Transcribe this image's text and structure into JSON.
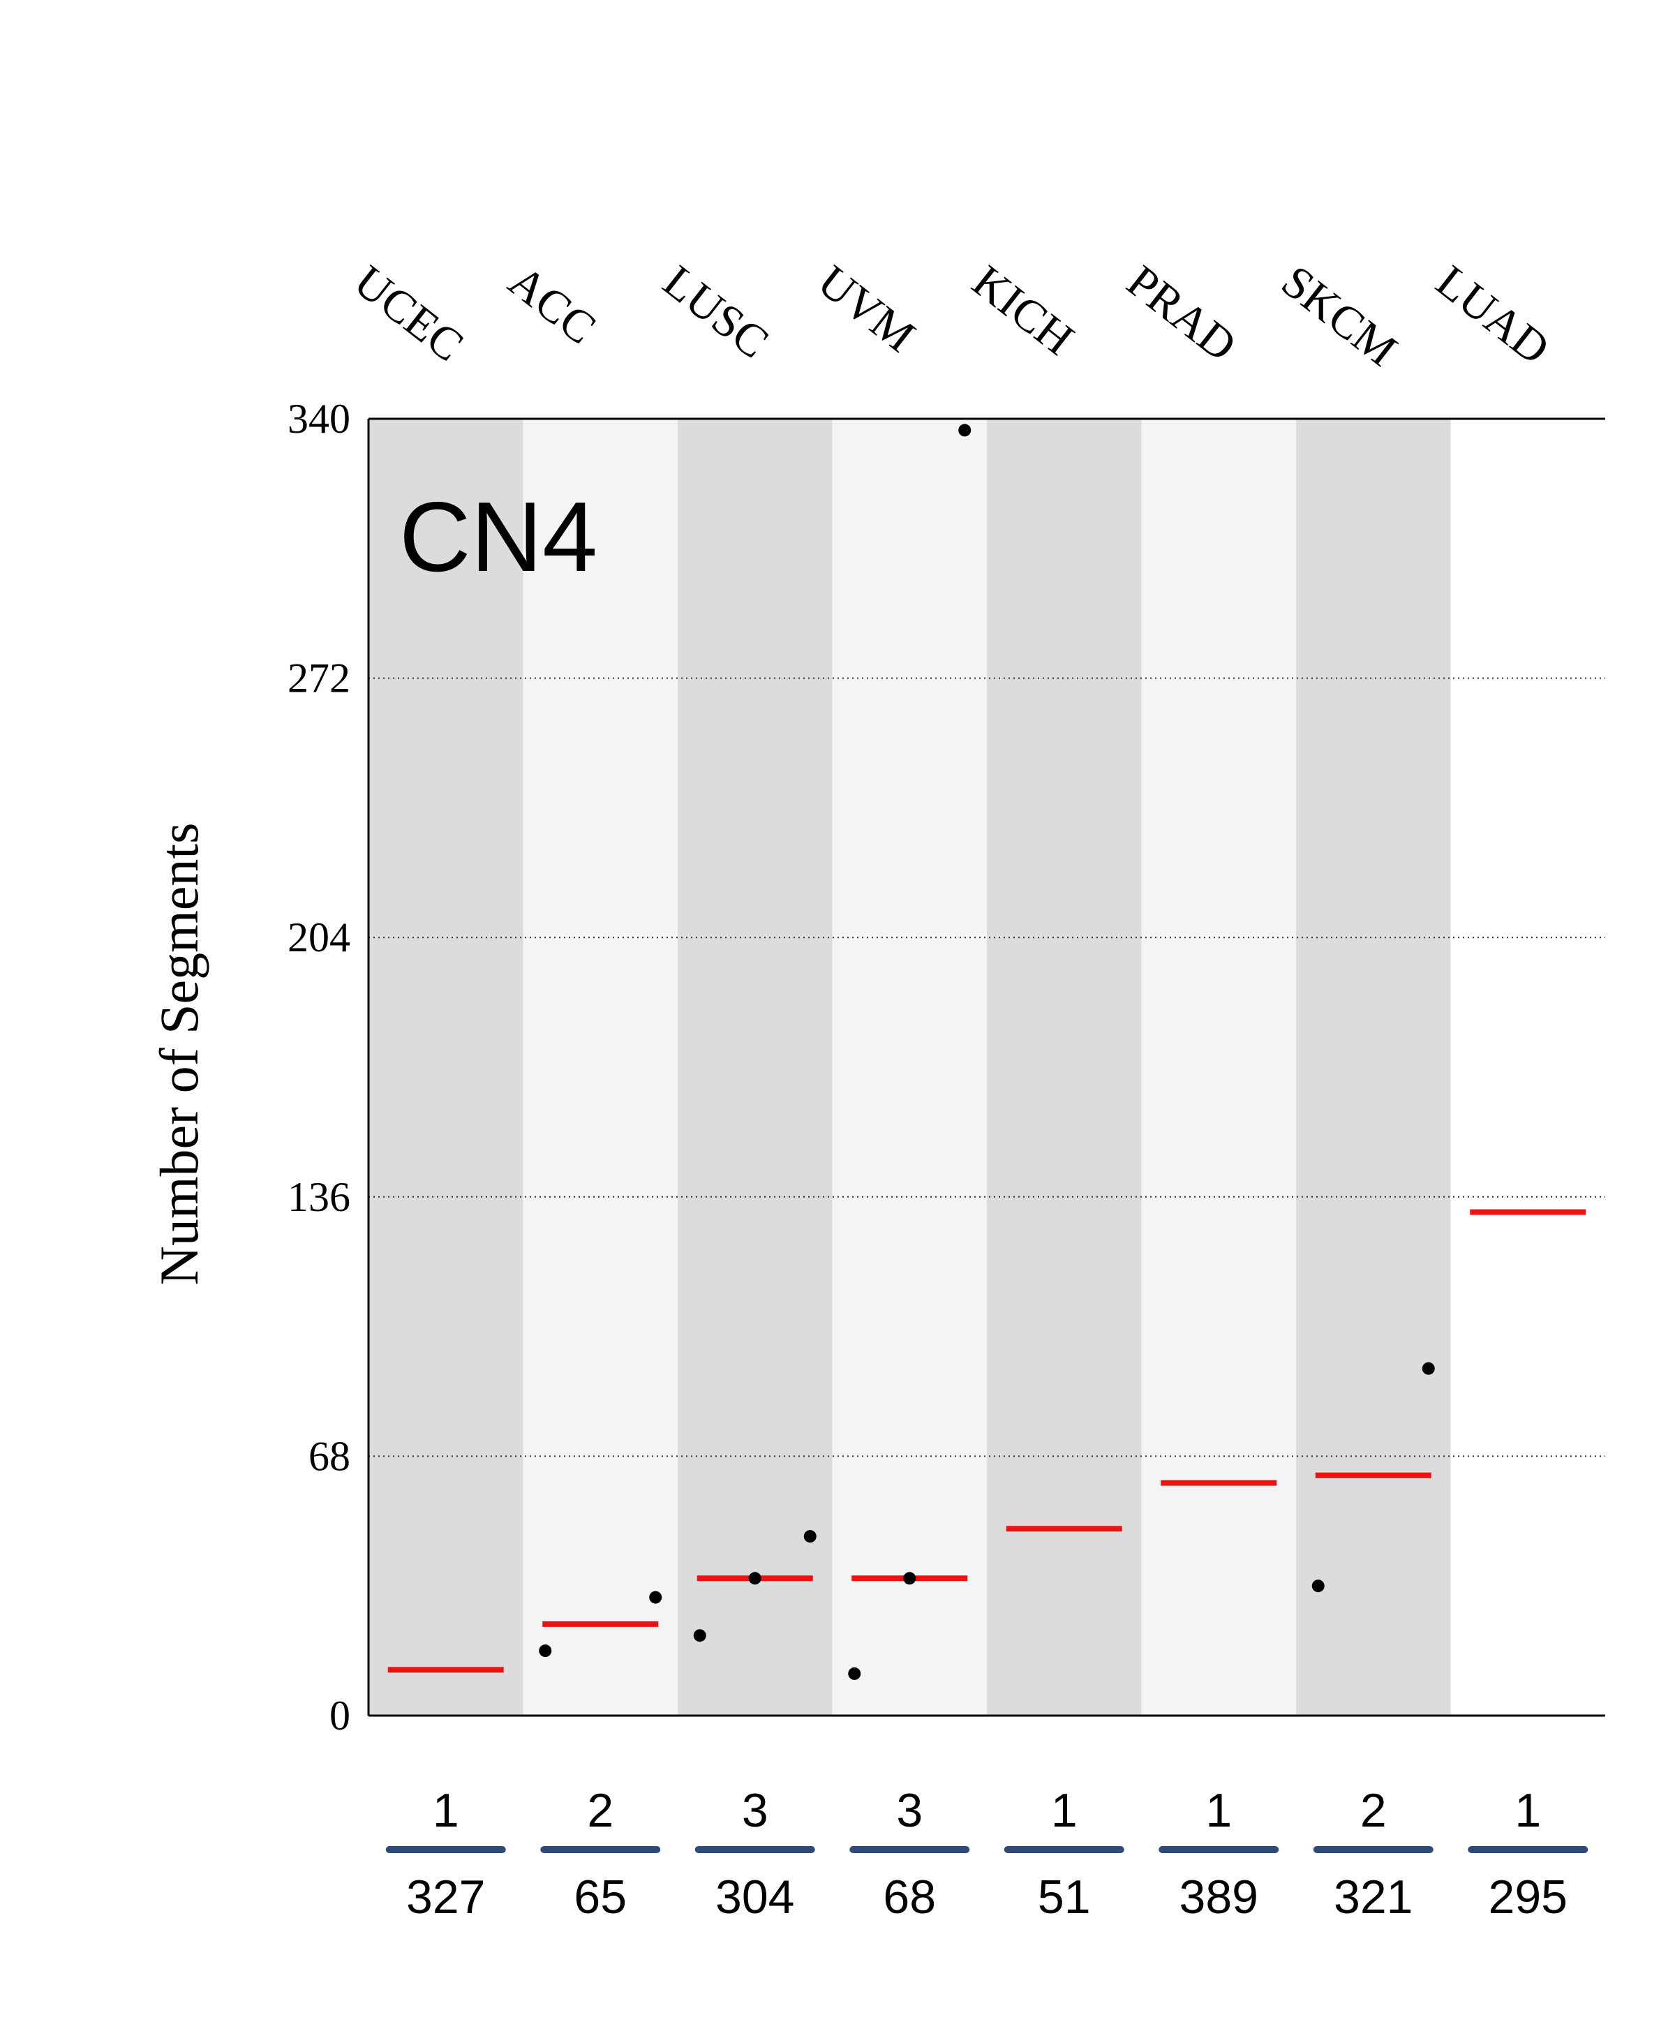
{
  "chart_data": {
    "type": "scatter",
    "title": "",
    "panel_label": "CN4",
    "ylabel": "Number of Segments",
    "xlabel": "",
    "ylim": [
      0,
      340
    ],
    "yticks": [
      0,
      68,
      136,
      204,
      272,
      340
    ],
    "grid": "horizontal dotted",
    "categories": [
      "UCEC",
      "ACC",
      "LUSC",
      "UVM",
      "KICH",
      "PRAD",
      "SKCM",
      "LUAD"
    ],
    "medians": [
      12,
      24,
      36,
      36,
      49,
      61,
      63,
      132
    ],
    "points": [
      [],
      [
        17,
        31
      ],
      [
        21,
        36,
        47
      ],
      [
        11,
        36,
        337
      ],
      [],
      [],
      [
        34,
        91
      ],
      []
    ],
    "counts_samples": [
      "1",
      "2",
      "3",
      "3",
      "1",
      "1",
      "2",
      "1"
    ],
    "counts_total": [
      "327",
      "65",
      "304",
      "68",
      "51",
      "389",
      "321",
      "295"
    ],
    "colors": {
      "band_dark": "#dcdcdc",
      "band_light": "#f4f4f4",
      "median": "#ee1111",
      "point": "#000000",
      "underline": "#2f4a78",
      "axis": "#000000"
    }
  }
}
